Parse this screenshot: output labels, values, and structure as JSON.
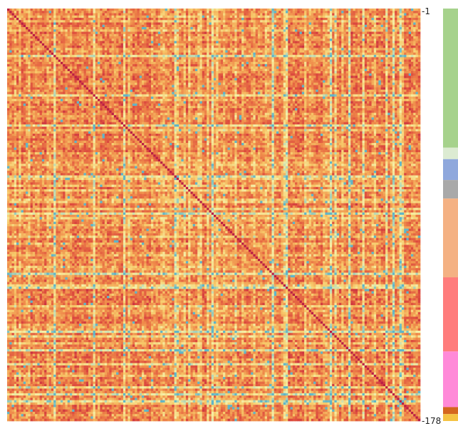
{
  "chart_data": {
    "type": "heatmap",
    "title": "",
    "xlabel": "",
    "ylabel": "",
    "n_rows": 178,
    "n_cols": 178,
    "row_labels": {
      "first": "1",
      "last": "178"
    },
    "tick_prefix": "-",
    "symmetric": true,
    "diagonal": "dark",
    "color_scale": {
      "low": "#5fb5c9",
      "stops": [
        "#5fb5c9",
        "#f5f0a8",
        "#f7c96a",
        "#ef8a4a",
        "#dd4b3e",
        "#b71a46"
      ],
      "high": "#b71a46"
    },
    "group_annotation": [
      {
        "start_row": 1,
        "end_row": 60,
        "color": "#a6d28c"
      },
      {
        "start_row": 61,
        "end_row": 65,
        "color": "#dcebd2"
      },
      {
        "start_row": 66,
        "end_row": 74,
        "color": "#8fa8dc"
      },
      {
        "start_row": 75,
        "end_row": 82,
        "color": "#a9a9a9"
      },
      {
        "start_row": 83,
        "end_row": 116,
        "color": "#f4b183"
      },
      {
        "start_row": 117,
        "end_row": 148,
        "color": "#ff7c7c"
      },
      {
        "start_row": 149,
        "end_row": 172,
        "color": "#ff8ad8"
      },
      {
        "start_row": 173,
        "end_row": 175,
        "color": "#d4661e"
      },
      {
        "start_row": 176,
        "end_row": 178,
        "color": "#f5c242"
      }
    ]
  }
}
